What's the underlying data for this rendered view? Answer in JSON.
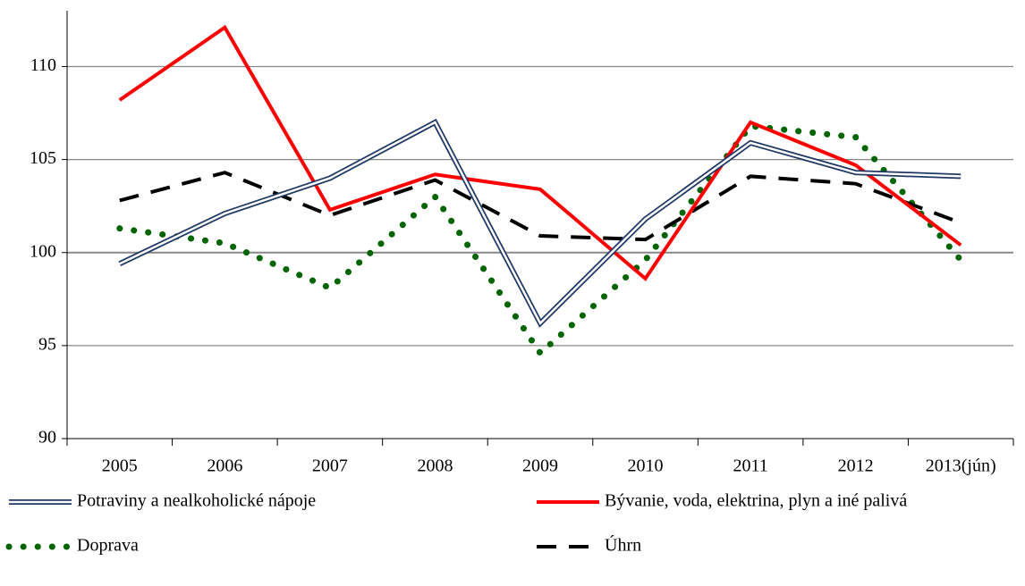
{
  "chart_data": {
    "type": "line",
    "categories": [
      "2005",
      "2006",
      "2007",
      "2008",
      "2009",
      "2010",
      "2011",
      "2012",
      "2013(jún)"
    ],
    "series": [
      {
        "name": "Potraviny a nealkoholické nápoje",
        "color": "#1f3864",
        "style": "double",
        "values": [
          99.4,
          102.1,
          104.0,
          107.0,
          96.2,
          101.8,
          105.9,
          104.3,
          104.1
        ]
      },
      {
        "name": "Bývanie, voda, elektrina, plyn a iné palivá",
        "color": "#ff0000",
        "style": "solid",
        "values": [
          108.2,
          112.1,
          102.3,
          104.2,
          103.4,
          98.6,
          107.0,
          104.7,
          100.4
        ]
      },
      {
        "name": "Doprava",
        "color": "#006400",
        "style": "dotted",
        "values": [
          101.3,
          100.5,
          98.1,
          103.0,
          94.6,
          99.6,
          106.8,
          106.2,
          99.6
        ]
      },
      {
        "name": "Úhrn",
        "color": "#000000",
        "style": "dashed",
        "values": [
          102.8,
          104.3,
          102.0,
          103.9,
          100.9,
          100.7,
          104.1,
          103.7,
          101.6
        ]
      }
    ],
    "ylim": [
      90,
      113
    ],
    "yticks": [
      90,
      95,
      100,
      105,
      110
    ],
    "grid": true,
    "legend": "bottom"
  }
}
